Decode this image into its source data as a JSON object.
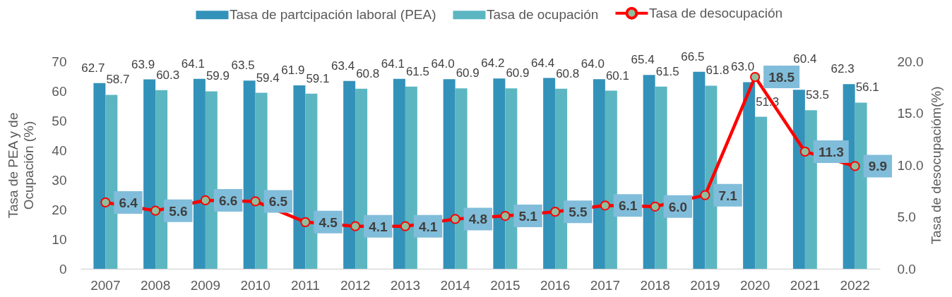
{
  "chart_data": {
    "type": "bar",
    "categories": [
      "2007",
      "2008",
      "2009",
      "2010",
      "2011",
      "2012",
      "2013",
      "2014",
      "2015",
      "2016",
      "2017",
      "2018",
      "2019",
      "2020",
      "2021",
      "2022"
    ],
    "series": [
      {
        "name": "Tasa de partcipación laboral (PEA)",
        "color": "#3392b9",
        "values": [
          62.7,
          63.9,
          64.1,
          63.5,
          61.9,
          63.4,
          64.1,
          64.0,
          64.2,
          64.4,
          64.0,
          65.4,
          66.5,
          63.0,
          60.4,
          62.3
        ],
        "value_labels": [
          "62.7",
          "63.9",
          "64.1",
          "63.5",
          "61.9",
          "63.4",
          "64.1",
          "64.0",
          "64.2",
          "64.4",
          "64.0",
          "65.4",
          "66.5",
          "63.0",
          "60.4",
          "62.3"
        ]
      },
      {
        "name": "Tasa de ocupación",
        "color": "#5bb6c2",
        "values": [
          58.7,
          60.3,
          59.9,
          59.4,
          59.1,
          60.8,
          61.5,
          60.9,
          60.9,
          60.8,
          60.1,
          61.5,
          61.8,
          51.3,
          53.5,
          56.1
        ],
        "value_labels": [
          "58.7",
          "60.3",
          "59.9",
          "59.4",
          "59.1",
          "60.8",
          "61.5",
          "60.9",
          "60.9",
          "60.8",
          "60.1",
          "61.5",
          "61.8",
          "51.3",
          "53.5",
          "56.1"
        ]
      },
      {
        "name": "Tasa de desocupación",
        "type": "line",
        "axis": "y2",
        "color": "#ff0000",
        "values": [
          6.4,
          5.6,
          6.6,
          6.5,
          4.5,
          4.1,
          4.1,
          4.8,
          5.1,
          5.5,
          6.1,
          6.0,
          7.1,
          18.5,
          11.3,
          9.9
        ],
        "value_labels": [
          "6.4",
          "5.6",
          "6.6",
          "6.5",
          "4.5",
          "4.1",
          "4.1",
          "4.8",
          "5.1",
          "5.5",
          "6.1",
          "6.0",
          "7.1",
          "18.5",
          "11.3",
          "9.9"
        ]
      }
    ],
    "ylabel": "Tasa de PEA y de Ocupación (%)",
    "y2label": "Tasa de desocupacióm(%)",
    "ylim": [
      0,
      70
    ],
    "yticks": [
      0,
      10,
      20,
      30,
      40,
      50,
      60,
      70
    ],
    "y2lim": [
      0,
      20
    ],
    "y2ticks": [
      {
        "value": 0,
        "label": "0.0"
      },
      {
        "value": 5,
        "label": "5.0"
      },
      {
        "value": 10,
        "label": "10.0"
      },
      {
        "value": 15,
        "label": "15.0"
      },
      {
        "value": 20,
        "label": "20.0"
      }
    ],
    "legend": "top",
    "grid": false,
    "marker": "circle",
    "line_style": "solid"
  }
}
